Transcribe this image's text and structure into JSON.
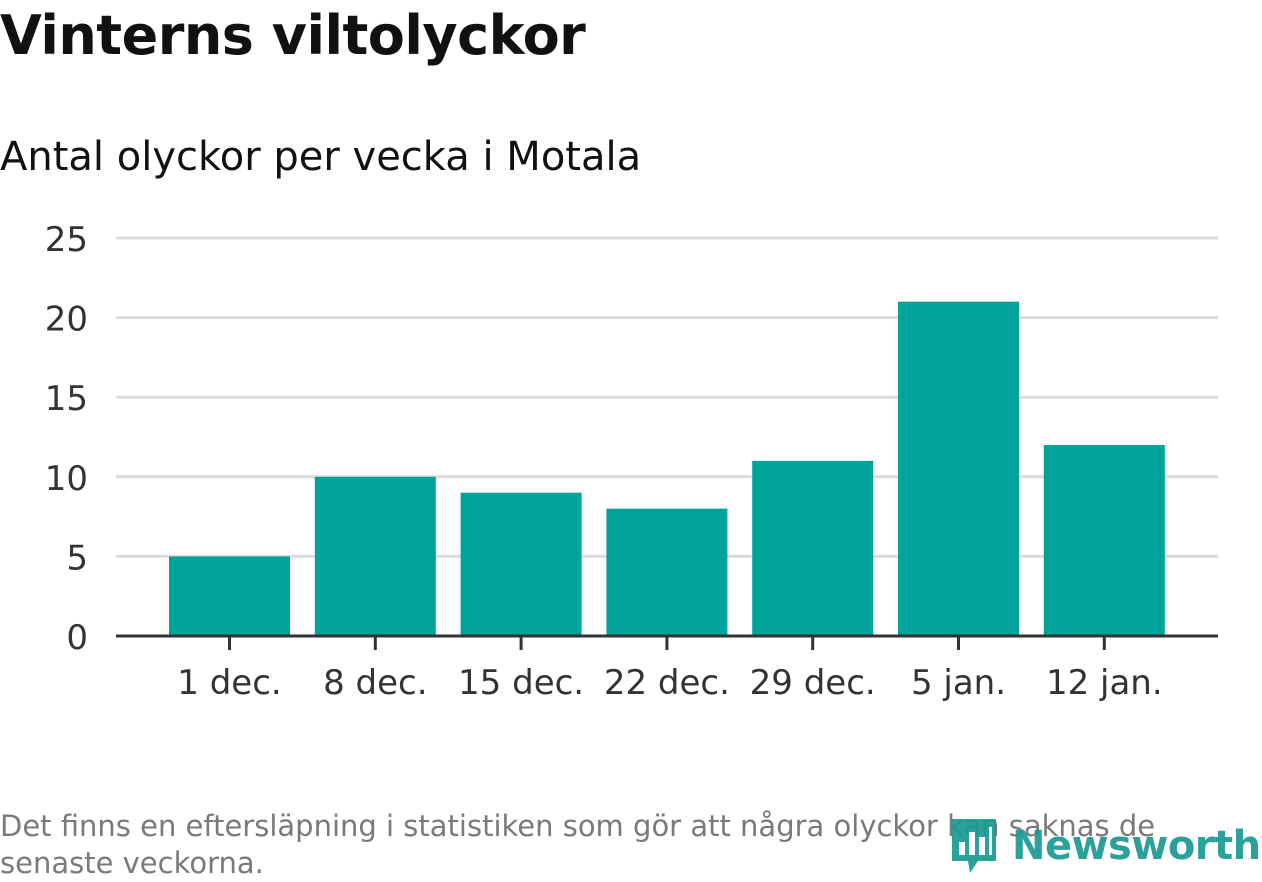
{
  "title": "Vinterns viltolyckor",
  "subtitle": "Antal olyckor per vecka i Motala",
  "footnote": "Det finns en eftersläpning i statistiken som gör att några olyckor kan saknas de senaste veckorna.",
  "logo": {
    "text": "Newsworthy",
    "icon": "newsworthy-logo-icon"
  },
  "colors": {
    "bar": "#00a39a",
    "grid": "#dcdcdc",
    "axis": "#333333",
    "tick_text": "#333333"
  },
  "chart_data": {
    "type": "bar",
    "title": "Vinterns viltolyckor",
    "subtitle": "Antal olyckor per vecka i Motala",
    "categories": [
      "1 dec.",
      "8 dec.",
      "15 dec.",
      "22 dec.",
      "29 dec.",
      "5 jan.",
      "12 jan."
    ],
    "values": [
      5,
      10,
      9,
      8,
      11,
      21,
      12
    ],
    "yticks": [
      0,
      5,
      10,
      15,
      20,
      25
    ],
    "ylim": [
      0,
      25
    ],
    "xlabel": "",
    "ylabel": "",
    "grid": true
  }
}
